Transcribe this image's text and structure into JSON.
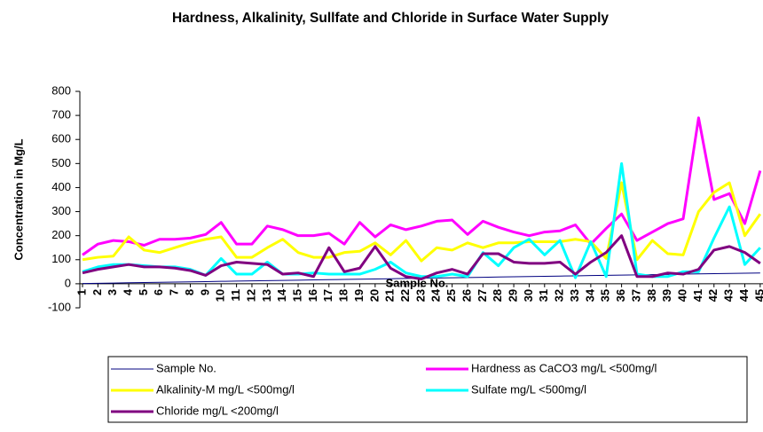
{
  "chart_data": {
    "type": "line",
    "title": "Hardness, Alkalinity, Sullfate and Chloride in Surface Water Supply",
    "x_label": "Sample No.",
    "y_label": "Concentration in Mg/L",
    "categories": [
      "1",
      "2",
      "3",
      "4",
      "5",
      "6",
      "7",
      "8",
      "9",
      "10",
      "11",
      "12",
      "13",
      "14",
      "15",
      "16",
      "17",
      "18",
      "19",
      "20",
      "21",
      "22",
      "23",
      "24",
      "25",
      "26",
      "27",
      "28",
      "29",
      "30",
      "31",
      "32",
      "33",
      "34",
      "35",
      "36",
      "37",
      "38",
      "39",
      "40",
      "41",
      "42",
      "43",
      "44",
      "45"
    ],
    "ylim": [
      -100,
      800
    ],
    "yticks": [
      -100,
      0,
      100,
      200,
      300,
      400,
      500,
      600,
      700,
      800
    ],
    "series": [
      {
        "name": "Sample No.",
        "color": "#000080",
        "values": [
          1,
          2,
          3,
          4,
          5,
          6,
          7,
          8,
          9,
          10,
          11,
          12,
          13,
          14,
          15,
          16,
          17,
          18,
          19,
          20,
          21,
          22,
          23,
          24,
          25,
          26,
          27,
          28,
          29,
          30,
          31,
          32,
          33,
          34,
          35,
          36,
          37,
          38,
          39,
          40,
          41,
          42,
          43,
          44,
          45
        ]
      },
      {
        "name": "Hardness as CaCO3 mg/L <500mg/l",
        "color": "#ff00ff",
        "values": [
          120,
          165,
          180,
          175,
          160,
          185,
          185,
          190,
          205,
          255,
          165,
          165,
          240,
          225,
          200,
          200,
          210,
          165,
          255,
          195,
          245,
          225,
          240,
          260,
          265,
          205,
          260,
          235,
          215,
          200,
          215,
          220,
          245,
          165,
          230,
          290,
          180,
          215,
          250,
          270,
          690,
          350,
          375,
          250,
          470
        ]
      },
      {
        "name": "Alkalinity-M mg/L <500mg/l",
        "color": "#ffff00",
        "values": [
          100,
          110,
          115,
          195,
          140,
          130,
          150,
          170,
          185,
          195,
          110,
          110,
          150,
          185,
          130,
          110,
          110,
          130,
          135,
          170,
          120,
          180,
          95,
          150,
          140,
          170,
          150,
          170,
          170,
          175,
          175,
          175,
          185,
          175,
          105,
          420,
          100,
          180,
          125,
          120,
          300,
          380,
          420,
          200,
          290
        ]
      },
      {
        "name": "Sulfate mg/L <500mg/l",
        "color": "#00ffff",
        "values": [
          50,
          70,
          80,
          80,
          75,
          70,
          70,
          60,
          35,
          105,
          40,
          40,
          90,
          40,
          40,
          45,
          40,
          40,
          40,
          60,
          90,
          45,
          30,
          30,
          40,
          30,
          130,
          75,
          150,
          185,
          120,
          180,
          25,
          175,
          30,
          500,
          40,
          30,
          30,
          50,
          50,
          190,
          320,
          80,
          150
        ]
      },
      {
        "name": "Chloride mg/L <200mg/l",
        "color": "#800080",
        "values": [
          45,
          60,
          70,
          80,
          70,
          70,
          65,
          55,
          35,
          75,
          90,
          85,
          80,
          40,
          45,
          30,
          150,
          50,
          65,
          155,
          65,
          30,
          20,
          45,
          60,
          40,
          125,
          125,
          90,
          85,
          85,
          90,
          40,
          90,
          130,
          200,
          30,
          30,
          45,
          40,
          60,
          140,
          155,
          130,
          85
        ]
      }
    ]
  }
}
